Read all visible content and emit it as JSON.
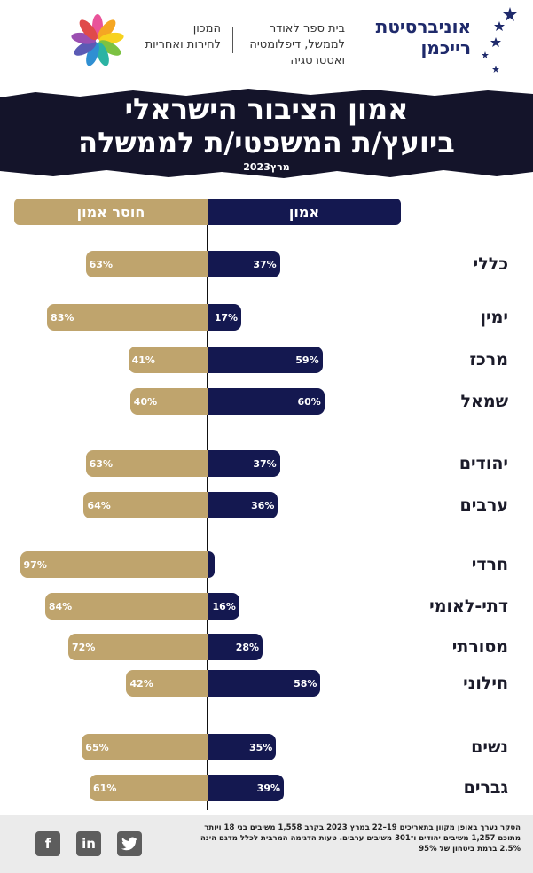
{
  "header": {
    "university_line1": "אוניברסיטת",
    "university_line2": "רייכמן",
    "school_lines": [
      "בית ספר לאודר",
      "לממשל, דיפלומטיה",
      "ואסטרטגיה"
    ],
    "institute_lines": [
      "המכון",
      "לחירות ואחריות"
    ]
  },
  "banner": {
    "title_line1": "אמון הציבור הישראלי",
    "title_line2": "ביועץ/ת המשפטי/ת לממשלה",
    "date": "מרץ2023"
  },
  "chart_data": {
    "type": "bar",
    "legend": {
      "trust": "אמון",
      "distrust": "חוסר אמון"
    },
    "series": [
      {
        "name": "אמון",
        "values": [
          37,
          17,
          59,
          60,
          37,
          36,
          3,
          16,
          28,
          58,
          35,
          39
        ]
      },
      {
        "name": "חוסר אמון",
        "values": [
          63,
          83,
          41,
          40,
          63,
          64,
          97,
          84,
          72,
          42,
          65,
          61
        ]
      }
    ],
    "categories": [
      "כללי",
      "ימין",
      "מרכז",
      "שמאל",
      "יהודים",
      "ערבים",
      "חרדי",
      "דתי-לאומי",
      "מסורתי",
      "חילוני",
      "נשים",
      "גברים"
    ],
    "labels_trust": [
      "37%",
      "17%",
      "59%",
      "60%",
      "37%",
      "36%",
      "",
      "16%",
      "28%",
      "58%",
      "35%",
      "39%"
    ],
    "labels_distrust": [
      "63%",
      "83%",
      "41%",
      "40%",
      "63%",
      "64%",
      "97%",
      "84%",
      "72%",
      "42%",
      "65%",
      "61%"
    ],
    "colors": {
      "trust": "#141850",
      "distrust": "#bfa46d"
    }
  },
  "footer": {
    "note_line1": "הסקר נערך באופן מקוון בתאריכים 19–22 במרץ 2023 בקרב 1,558 משיבים בני 18 ויותר",
    "note_line2": "מתוכם 1,257 משיבים יהודים ו־301 משיבים ערבים. טעות הדגימה המרבית לכלל מדגם הינה",
    "note_line3": "2.5% ברמת ביטחון של 95%",
    "social": [
      "f",
      "in",
      "twitter"
    ]
  }
}
